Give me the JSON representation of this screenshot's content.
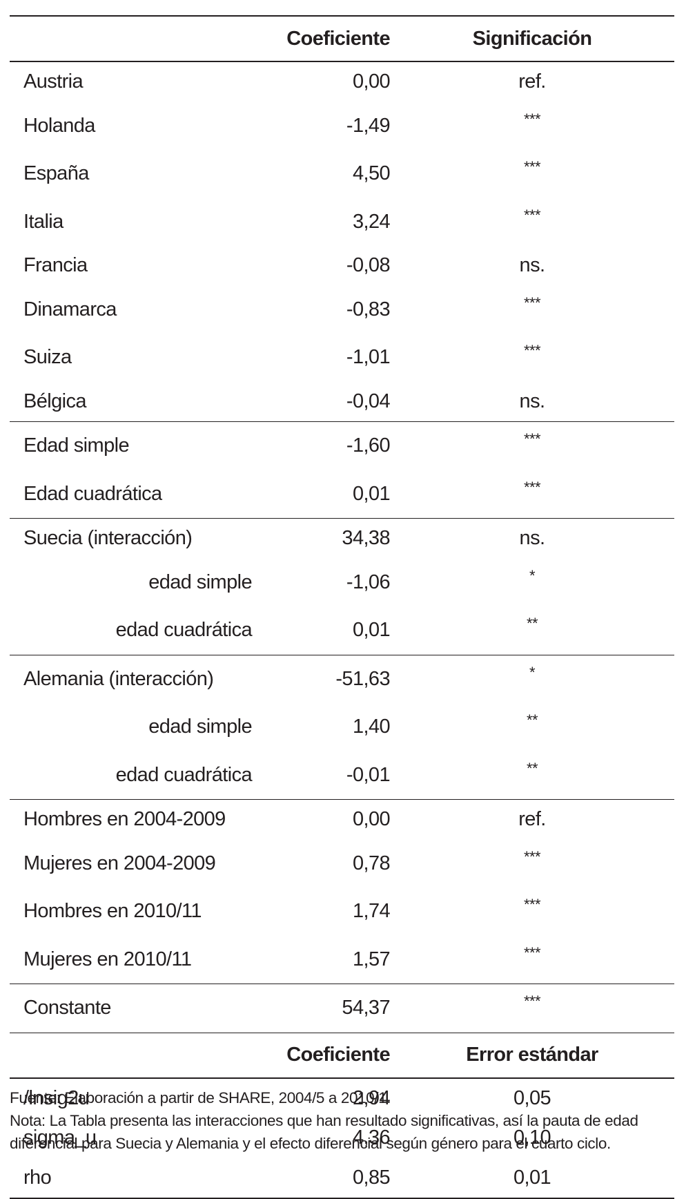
{
  "table": {
    "header": {
      "label": "",
      "coef": "Coeficiente",
      "sig": "Significación"
    },
    "groups": [
      {
        "rows": [
          {
            "label": "Austria",
            "coef": "0,00",
            "sig": "ref."
          },
          {
            "label": "Holanda",
            "coef": "-1,49",
            "sig": "***"
          },
          {
            "label": "España",
            "coef": "4,50",
            "sig": "***"
          },
          {
            "label": "Italia",
            "coef": "3,24",
            "sig": "***"
          },
          {
            "label": "Francia",
            "coef": "-0,08",
            "sig": "ns."
          },
          {
            "label": "Dinamarca",
            "coef": "-0,83",
            "sig": "***"
          },
          {
            "label": "Suiza",
            "coef": "-1,01",
            "sig": "***"
          },
          {
            "label": "Bélgica",
            "coef": "-0,04",
            "sig": "ns."
          }
        ]
      },
      {
        "rows": [
          {
            "label": "Edad simple",
            "coef": "-1,60",
            "sig": "***"
          },
          {
            "label": "Edad cuadrática",
            "coef": "0,01",
            "sig": "***"
          }
        ]
      },
      {
        "rows": [
          {
            "label": "Suecia (interacción)",
            "coef": "34,38",
            "sig": "ns."
          },
          {
            "label": "edad simple",
            "coef": "-1,06",
            "sig": "*",
            "indent": true
          },
          {
            "label": "edad cuadrática",
            "coef": "0,01",
            "sig": "**",
            "indent": true
          }
        ]
      },
      {
        "rows": [
          {
            "label": "Alemania (interacción)",
            "coef": "-51,63",
            "sig": "*"
          },
          {
            "label": "edad simple",
            "coef": "1,40",
            "sig": "**",
            "indent": true
          },
          {
            "label": "edad cuadrática",
            "coef": "-0,01",
            "sig": "**",
            "indent": true
          }
        ]
      },
      {
        "rows": [
          {
            "label": "Hombres en 2004-2009",
            "coef": "0,00",
            "sig": "ref."
          },
          {
            "label": "Mujeres en 2004-2009",
            "coef": "0,78",
            "sig": "***"
          },
          {
            "label": "Hombres en 2010/11",
            "coef": "1,74",
            "sig": "***"
          },
          {
            "label": "Mujeres en 2010/11",
            "coef": "1,57",
            "sig": "***"
          }
        ]
      },
      {
        "rows": [
          {
            "label": "Constante",
            "coef": "54,37",
            "sig": "***"
          }
        ]
      }
    ],
    "header2": {
      "label": "",
      "coef": "Coeficiente",
      "sig": "Error estándar"
    },
    "variance_rows": [
      {
        "label": "/lnsig2u",
        "coef": "2,94",
        "sig": "0,05"
      },
      {
        "label": "sigma_u",
        "coef": "4,36",
        "sig": "0,10"
      },
      {
        "label": "rho",
        "coef": "0,85",
        "sig": "0,01"
      }
    ]
  },
  "notes": {
    "source": "Fuente: Elaboración a partir de SHARE, 2004/5 a 2010/1.",
    "note_line1": "Nota: La Tabla presenta las interacciones que han resultado significativas, así la pauta de edad",
    "note_line2": "diferencial para Suecia y Alemania y el efecto diferencial según género para el cuarto ciclo."
  }
}
